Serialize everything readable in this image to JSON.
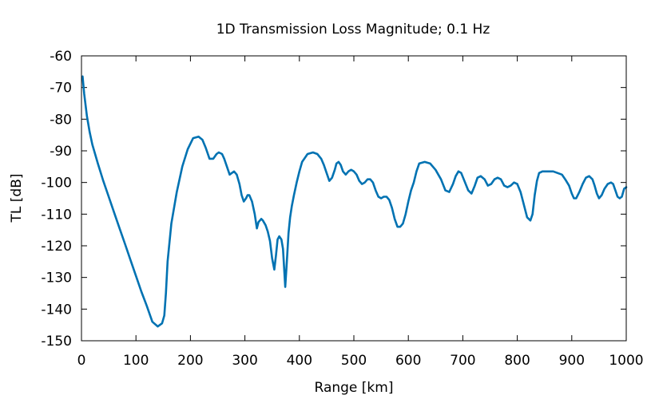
{
  "chart_data": {
    "type": "line",
    "title": "1D Transmission Loss Magnitude; 0.1 Hz",
    "xlabel": "Range [km]",
    "ylabel": "TL [dB]",
    "xlim": [
      0,
      1000
    ],
    "ylim": [
      -150,
      -60
    ],
    "xticks": [
      "0",
      "100",
      "200",
      "300",
      "400",
      "500",
      "600",
      "700",
      "800",
      "900",
      "1000"
    ],
    "yticks": [
      "-60",
      "-70",
      "-80",
      "-90",
      "-100",
      "-110",
      "-120",
      "-130",
      "-140",
      "-150"
    ],
    "grid": false,
    "colors": {
      "line": "#0072b2"
    },
    "series": [
      {
        "x": [
          2,
          5,
          10,
          15,
          20,
          30,
          40,
          50,
          60,
          70,
          80,
          90,
          100,
          110,
          120,
          130,
          140,
          148,
          152,
          155,
          158,
          165,
          175,
          185,
          195,
          205,
          215,
          222,
          228,
          235,
          242,
          248,
          252,
          258,
          262,
          266,
          272,
          276,
          280,
          285,
          290,
          294,
          298,
          302,
          305,
          308,
          313,
          318,
          322,
          325,
          330,
          333,
          338,
          342,
          346,
          350,
          354,
          357,
          360,
          363,
          367,
          370,
          374,
          377,
          380,
          383,
          386,
          390,
          395,
          400,
          405,
          415,
          425,
          433,
          440,
          445,
          450,
          455,
          460,
          465,
          468,
          472,
          476,
          480,
          485,
          490,
          495,
          500,
          505,
          510,
          515,
          520,
          525,
          530,
          535,
          540,
          545,
          550,
          555,
          560,
          565,
          570,
          575,
          580,
          585,
          590,
          595,
          600,
          605,
          610,
          615,
          620,
          630,
          640,
          650,
          660,
          668,
          675,
          682,
          687,
          692,
          697,
          703,
          710,
          716,
          722,
          727,
          733,
          740,
          746,
          752,
          758,
          764,
          770,
          776,
          782,
          788,
          794,
          800,
          806,
          812,
          818,
          824,
          828,
          832,
          836,
          840,
          846,
          852,
          858,
          866,
          874,
          882,
          888,
          895,
          900,
          904,
          908,
          914,
          920,
          926,
          932,
          938,
          942,
          946,
          950,
          955,
          960,
          966,
          972,
          976,
          980,
          984,
          988,
          992,
          996,
          1000
        ],
        "values": [
          -66.5,
          -72,
          -79,
          -84,
          -88,
          -94,
          -99.5,
          -104.5,
          -109.5,
          -114.5,
          -119.5,
          -124.5,
          -129.5,
          -134.5,
          -139,
          -144,
          -145.5,
          -144.5,
          -142,
          -135,
          -125,
          -113,
          -103,
          -95,
          -89.5,
          -86,
          -85.5,
          -86.5,
          -89,
          -92.5,
          -92.5,
          -91,
          -90.5,
          -91,
          -92.5,
          -94.5,
          -97.5,
          -97,
          -96.5,
          -97.5,
          -100.5,
          -104,
          -106,
          -105,
          -104,
          -104,
          -106,
          -110,
          -114.5,
          -112.5,
          -111.5,
          -112,
          -113.5,
          -115.5,
          -118.5,
          -124,
          -127.5,
          -123,
          -118,
          -117,
          -118,
          -121,
          -133,
          -125,
          -116,
          -111,
          -107.5,
          -104,
          -100,
          -96.5,
          -93.5,
          -91,
          -90.5,
          -91,
          -92.5,
          -94.5,
          -97,
          -99.5,
          -98.5,
          -96,
          -94,
          -93.5,
          -94.5,
          -96.5,
          -97.5,
          -96.5,
          -96,
          -96.5,
          -97.5,
          -99.5,
          -100.5,
          -100,
          -99,
          -99,
          -100,
          -102.5,
          -104.5,
          -105,
          -104.5,
          -104.5,
          -105.5,
          -108,
          -111.5,
          -114,
          -114,
          -113,
          -110,
          -106,
          -102.5,
          -100,
          -96.5,
          -94,
          -93.5,
          -94,
          -96,
          -99,
          -102.5,
          -103,
          -100.5,
          -98,
          -96.5,
          -97,
          -99.5,
          -102.5,
          -103.5,
          -101,
          -98.5,
          -98,
          -99,
          -101,
          -100.5,
          -99,
          -98.5,
          -99,
          -101,
          -101.5,
          -101,
          -100,
          -100.5,
          -103,
          -107,
          -111,
          -112,
          -110,
          -104,
          -99.5,
          -97,
          -96.5,
          -96.5,
          -96.5,
          -96.5,
          -97,
          -97.5,
          -99,
          -101,
          -103.5,
          -105,
          -105,
          -103,
          -100.5,
          -98.5,
          -98,
          -99,
          -101,
          -103.5,
          -105,
          -104,
          -102,
          -100.5,
          -100,
          -100.5,
          -102.5,
          -104.5,
          -105,
          -104.5,
          -102,
          -101.5
        ]
      }
    ]
  }
}
